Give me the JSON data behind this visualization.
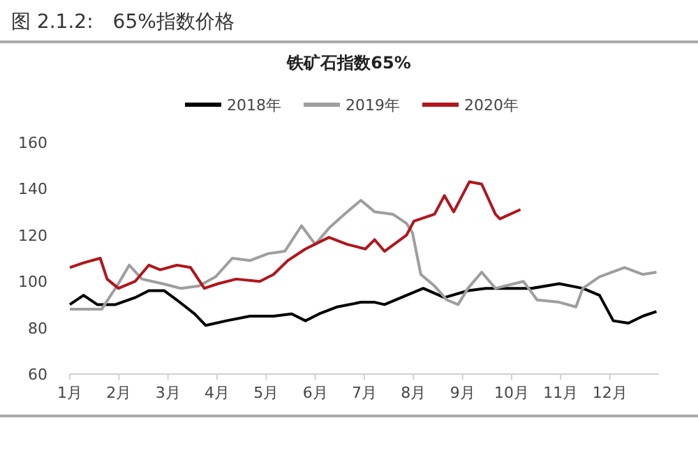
{
  "chart_data": {
    "type": "line",
    "subtitle": "图 2.1.2:　65%指数价格",
    "title": "铁矿石指数65%",
    "xlim": [
      1,
      13
    ],
    "xticks": [
      {
        "value": 1,
        "label": "1月"
      },
      {
        "value": 2,
        "label": "2月"
      },
      {
        "value": 3,
        "label": "3月"
      },
      {
        "value": 4,
        "label": "4月"
      },
      {
        "value": 5,
        "label": "5月"
      },
      {
        "value": 6,
        "label": "6月"
      },
      {
        "value": 7,
        "label": "7月"
      },
      {
        "value": 8,
        "label": "8月"
      },
      {
        "value": 9,
        "label": "9月"
      },
      {
        "value": 10,
        "label": "10月"
      },
      {
        "value": 11,
        "label": "11月"
      },
      {
        "value": 12,
        "label": "12月"
      }
    ],
    "ylim": [
      60,
      160
    ],
    "yticks": [
      60,
      80,
      100,
      120,
      140,
      160
    ],
    "grid": false,
    "legend": "top",
    "marker": "none",
    "line_style": "solid",
    "series": [
      {
        "name": "2018年",
        "color": "#000000",
        "x": [
          1.0,
          1.28,
          1.56,
          1.93,
          2.33,
          2.61,
          2.92,
          3.18,
          3.54,
          3.77,
          4.19,
          4.67,
          5.15,
          5.52,
          5.8,
          6.08,
          6.45,
          6.93,
          7.21,
          7.41,
          7.86,
          8.2,
          8.63,
          9.11,
          9.47,
          9.95,
          10.41,
          10.97,
          11.45,
          11.79,
          12.07,
          12.38,
          12.67,
          12.95
        ],
        "values": [
          90,
          94,
          90,
          90,
          93,
          96,
          96,
          92,
          86,
          81,
          83,
          85,
          85,
          86,
          83,
          86,
          89,
          91,
          91,
          90,
          94,
          97,
          93,
          96,
          97,
          97,
          97,
          99,
          97,
          94,
          83,
          82,
          85,
          87
        ]
      },
      {
        "name": "2019年",
        "color": "#9e9e9e",
        "x": [
          1.0,
          1.65,
          1.99,
          2.21,
          2.47,
          2.89,
          3.26,
          3.63,
          3.97,
          4.31,
          4.67,
          5.04,
          5.38,
          5.72,
          6.0,
          6.28,
          6.65,
          6.93,
          7.21,
          7.58,
          7.86,
          7.98,
          8.15,
          8.43,
          8.68,
          8.91,
          9.11,
          9.39,
          9.67,
          10.24,
          10.52,
          10.97,
          11.31,
          11.45,
          11.79,
          12.3,
          12.67,
          12.95
        ],
        "values": [
          88,
          88,
          99,
          107,
          101,
          99,
          97,
          98,
          102,
          110,
          109,
          112,
          113,
          124,
          116,
          123,
          130,
          135,
          130,
          129,
          125,
          121,
          103,
          98,
          92,
          90,
          97,
          104,
          97,
          100,
          92,
          91,
          89,
          97,
          102,
          106,
          103,
          104
        ]
      },
      {
        "name": "2020年",
        "color": "#b0161d",
        "x": [
          1.0,
          1.28,
          1.62,
          1.76,
          1.99,
          2.33,
          2.61,
          2.84,
          3.18,
          3.46,
          3.74,
          4.02,
          4.39,
          4.87,
          5.15,
          5.44,
          5.8,
          6.28,
          6.65,
          7.02,
          7.21,
          7.41,
          7.86,
          8.01,
          8.43,
          8.63,
          8.82,
          9.14,
          9.39,
          9.67,
          9.76,
          10.18
        ],
        "values": [
          106,
          108,
          110,
          101,
          97,
          100,
          107,
          105,
          107,
          106,
          97,
          99,
          101,
          100,
          103,
          109,
          114,
          119,
          116,
          114,
          118,
          113,
          120,
          126,
          129,
          137,
          130,
          143,
          142,
          129,
          127,
          131
        ]
      }
    ]
  }
}
